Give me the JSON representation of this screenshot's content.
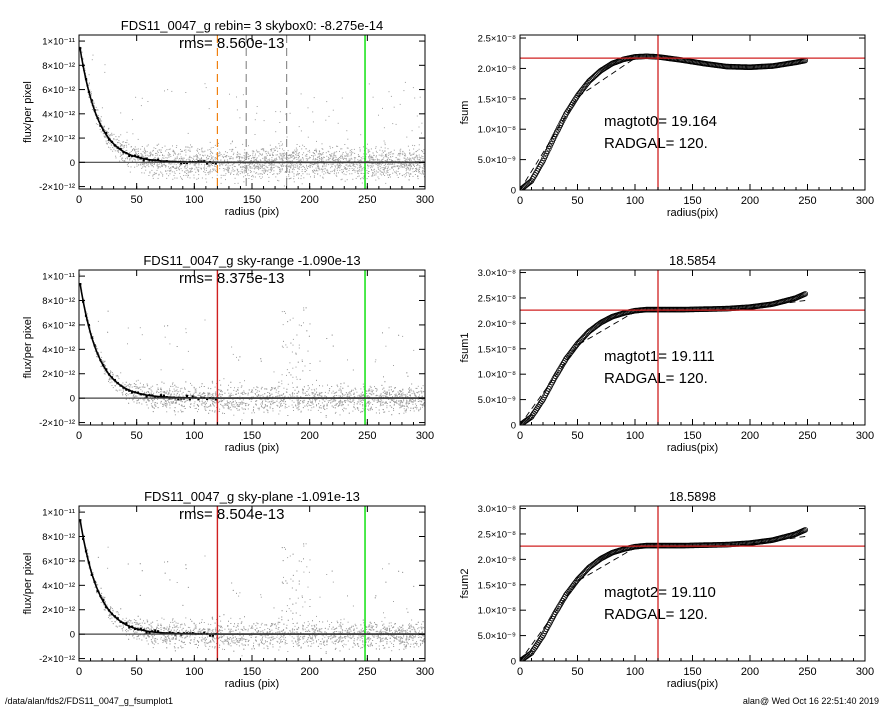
{
  "footer": {
    "left": "/data/alan/fds2/FDS11_0047_g_fsumplot1",
    "right": "alan@  Wed Oct 16 22:51:40 2019"
  },
  "colors": {
    "axis": "#000000",
    "scatter": "#a0a0a0",
    "profile": "#000000",
    "green": "#00e000",
    "red": "#d02020",
    "orange": "#f08010",
    "grayline": "#909090"
  },
  "chart_data": [
    {
      "id": "profile-1",
      "type": "scatter",
      "title": "FDS11_0047_g rebin= 3    skybox0: -8.275e-14",
      "annotation": "rms= 8.560e-13",
      "xlabel": "radius (pix)",
      "ylabel": "flux/per pixel",
      "xlim": [
        0,
        300
      ],
      "ylim": [
        -2.2e-12,
        1.05e-11
      ],
      "xticks": [
        0,
        50,
        100,
        150,
        200,
        250,
        300
      ],
      "yticks": [
        {
          "value": 1e-11,
          "label": "1×10⁻¹¹"
        },
        {
          "value": 8e-12,
          "label": "8×10⁻¹²"
        },
        {
          "value": 6e-12,
          "label": "6×10⁻¹²"
        },
        {
          "value": 4e-12,
          "label": "4×10⁻¹²"
        },
        {
          "value": 2e-12,
          "label": "2×10⁻¹²"
        },
        {
          "value": 0,
          "label": "0"
        },
        {
          "value": -2e-12,
          "label": "-2×10⁻¹²"
        }
      ],
      "vlines": [
        {
          "x": 248,
          "color": "green",
          "style": "solid"
        },
        {
          "x": 120,
          "color": "orange",
          "style": "dash"
        },
        {
          "x": 145,
          "color": "grayline",
          "style": "dash"
        },
        {
          "x": 180,
          "color": "grayline",
          "style": "dash"
        }
      ],
      "profile_model": {
        "peak": 1e-11,
        "scale": 16,
        "min_ratio": 0.005
      },
      "scatter_noise": 1.3e-12,
      "scatter_variant": "plain"
    },
    {
      "id": "fsum-1",
      "type": "line",
      "title": "",
      "annotation": [
        "magtot0=  19.164",
        "RADGAL=    120."
      ],
      "xlabel": "radius(pix)",
      "ylabel": "fsum",
      "xlim": [
        0,
        300
      ],
      "ylim": [
        0,
        2.55e-08
      ],
      "xticks": [
        0,
        50,
        100,
        150,
        200,
        250,
        300
      ],
      "yticks": [
        {
          "value": 0,
          "label": "0"
        },
        {
          "value": 5e-09,
          "label": "5.0×10⁻⁹"
        },
        {
          "value": 1e-08,
          "label": "1.0×10⁻⁸"
        },
        {
          "value": 1.5e-08,
          "label": "1.5×10⁻⁸"
        },
        {
          "value": 2e-08,
          "label": "2.0×10⁻⁸"
        },
        {
          "value": 2.5e-08,
          "label": "2.5×10⁻⁸"
        }
      ],
      "hline": 2.17e-08,
      "vline": 120,
      "curve": {
        "r": [
          0,
          10,
          20,
          30,
          40,
          50,
          60,
          70,
          80,
          90,
          100,
          110,
          120,
          140,
          160,
          180,
          200,
          220,
          240,
          248
        ],
        "v": [
          0,
          1.5e-09,
          4.8e-09,
          8.8e-09,
          1.25e-08,
          1.55e-08,
          1.79e-08,
          1.96e-08,
          2.08e-08,
          2.15e-08,
          2.19e-08,
          2.2e-08,
          2.19e-08,
          2.14e-08,
          2.08e-08,
          2.03e-08,
          2.02e-08,
          2.04e-08,
          2.1e-08,
          2.13e-08
        ]
      },
      "dashed": {
        "r": [
          0,
          50,
          100,
          150,
          200,
          248
        ],
        "v": [
          0,
          1.53e-08,
          2.17e-08,
          2.17e-08,
          2.17e-08,
          2.17e-08
        ]
      }
    },
    {
      "id": "profile-2",
      "type": "scatter",
      "title": "FDS11_0047_g sky-range -1.090e-13",
      "annotation": "rms= 8.375e-13",
      "xlabel": "radius (pix)",
      "ylabel": "flux/per pixel",
      "xlim": [
        0,
        300
      ],
      "ylim": [
        -2.2e-12,
        1.05e-11
      ],
      "xticks": [
        0,
        50,
        100,
        150,
        200,
        250,
        300
      ],
      "yticks": [
        {
          "value": 1e-11,
          "label": "1×10⁻¹¹"
        },
        {
          "value": 8e-12,
          "label": "8×10⁻¹²"
        },
        {
          "value": 6e-12,
          "label": "6×10⁻¹²"
        },
        {
          "value": 4e-12,
          "label": "4×10⁻¹²"
        },
        {
          "value": 2e-12,
          "label": "2×10⁻¹²"
        },
        {
          "value": 0,
          "label": "0"
        },
        {
          "value": -2e-12,
          "label": "-2×10⁻¹²"
        }
      ],
      "vlines": [
        {
          "x": 248,
          "color": "green",
          "style": "solid"
        },
        {
          "x": 120,
          "color": "red",
          "style": "solid"
        }
      ],
      "profile_model": {
        "peak": 1e-11,
        "scale": 16,
        "min_ratio": 0.005
      },
      "scatter_noise": 1.1e-12,
      "scatter_variant": "spike"
    },
    {
      "id": "fsum-2",
      "type": "line",
      "title": "18.5854",
      "annotation": [
        "magtot1=  19.111",
        "RADGAL=    120."
      ],
      "xlabel": "radius(pix)",
      "ylabel": "fsum1",
      "xlim": [
        0,
        300
      ],
      "ylim": [
        0,
        3.05e-08
      ],
      "xticks": [
        0,
        50,
        100,
        150,
        200,
        250,
        300
      ],
      "yticks": [
        {
          "value": 0,
          "label": "0"
        },
        {
          "value": 5e-09,
          "label": "5.0×10⁻⁹"
        },
        {
          "value": 1e-08,
          "label": "1.0×10⁻⁸"
        },
        {
          "value": 1.5e-08,
          "label": "1.5×10⁻⁸"
        },
        {
          "value": 2e-08,
          "label": "2.0×10⁻⁸"
        },
        {
          "value": 2.5e-08,
          "label": "2.5×10⁻⁸"
        },
        {
          "value": 3e-08,
          "label": "3.0×10⁻⁸"
        }
      ],
      "hline": 2.26e-08,
      "vline": 120,
      "curve": {
        "r": [
          0,
          10,
          20,
          30,
          40,
          50,
          60,
          70,
          80,
          90,
          100,
          110,
          120,
          140,
          160,
          180,
          200,
          220,
          240,
          248
        ],
        "v": [
          0,
          1.6e-09,
          5e-09,
          9.2e-09,
          1.3e-08,
          1.6e-08,
          1.84e-08,
          2.01e-08,
          2.13e-08,
          2.2e-08,
          2.25e-08,
          2.27e-08,
          2.27e-08,
          2.27e-08,
          2.28e-08,
          2.29e-08,
          2.32e-08,
          2.38e-08,
          2.5e-08,
          2.58e-08
        ]
      },
      "dashed": {
        "r": [
          0,
          50,
          100,
          150,
          200,
          248
        ],
        "v": [
          0,
          1.57e-08,
          2.23e-08,
          2.25e-08,
          2.3e-08,
          2.45e-08
        ]
      }
    },
    {
      "id": "profile-3",
      "type": "scatter",
      "title": "FDS11_0047_g sky-plane -1.091e-13",
      "annotation": "rms= 8.504e-13",
      "xlabel": "radius (pix)",
      "ylabel": "flux/per pixel",
      "xlim": [
        0,
        300
      ],
      "ylim": [
        -2.2e-12,
        1.05e-11
      ],
      "xticks": [
        0,
        50,
        100,
        150,
        200,
        250,
        300
      ],
      "yticks": [
        {
          "value": 1e-11,
          "label": "1×10⁻¹¹"
        },
        {
          "value": 8e-12,
          "label": "8×10⁻¹²"
        },
        {
          "value": 6e-12,
          "label": "6×10⁻¹²"
        },
        {
          "value": 4e-12,
          "label": "4×10⁻¹²"
        },
        {
          "value": 2e-12,
          "label": "2×10⁻¹²"
        },
        {
          "value": 0,
          "label": "0"
        },
        {
          "value": -2e-12,
          "label": "-2×10⁻¹²"
        }
      ],
      "vlines": [
        {
          "x": 248,
          "color": "green",
          "style": "solid"
        },
        {
          "x": 120,
          "color": "red",
          "style": "solid"
        }
      ],
      "profile_model": {
        "peak": 1e-11,
        "scale": 16,
        "min_ratio": 0.005
      },
      "scatter_noise": 1.1e-12,
      "scatter_variant": "spike"
    },
    {
      "id": "fsum-3",
      "type": "line",
      "title": "18.5898",
      "annotation": [
        "magtot2=  19.110",
        "RADGAL=    120."
      ],
      "xlabel": "radius(pix)",
      "ylabel": "fsum2",
      "xlim": [
        0,
        300
      ],
      "ylim": [
        0,
        3.05e-08
      ],
      "xticks": [
        0,
        50,
        100,
        150,
        200,
        250,
        300
      ],
      "yticks": [
        {
          "value": 0,
          "label": "0"
        },
        {
          "value": 5e-09,
          "label": "5.0×10⁻⁹"
        },
        {
          "value": 1e-08,
          "label": "1.0×10⁻⁸"
        },
        {
          "value": 1.5e-08,
          "label": "1.5×10⁻⁸"
        },
        {
          "value": 2e-08,
          "label": "2.0×10⁻⁸"
        },
        {
          "value": 2.5e-08,
          "label": "2.5×10⁻⁸"
        },
        {
          "value": 3e-08,
          "label": "3.0×10⁻⁸"
        }
      ],
      "hline": 2.26e-08,
      "vline": 120,
      "curve": {
        "r": [
          0,
          10,
          20,
          30,
          40,
          50,
          60,
          70,
          80,
          90,
          100,
          110,
          120,
          140,
          160,
          180,
          200,
          220,
          240,
          248
        ],
        "v": [
          0,
          1.6e-09,
          5e-09,
          9.2e-09,
          1.3e-08,
          1.6e-08,
          1.84e-08,
          2.01e-08,
          2.13e-08,
          2.2e-08,
          2.25e-08,
          2.27e-08,
          2.27e-08,
          2.27e-08,
          2.28e-08,
          2.29e-08,
          2.32e-08,
          2.38e-08,
          2.5e-08,
          2.58e-08
        ]
      },
      "dashed": {
        "r": [
          0,
          50,
          100,
          150,
          200,
          248
        ],
        "v": [
          0,
          1.57e-08,
          2.23e-08,
          2.25e-08,
          2.3e-08,
          2.45e-08
        ]
      }
    }
  ]
}
